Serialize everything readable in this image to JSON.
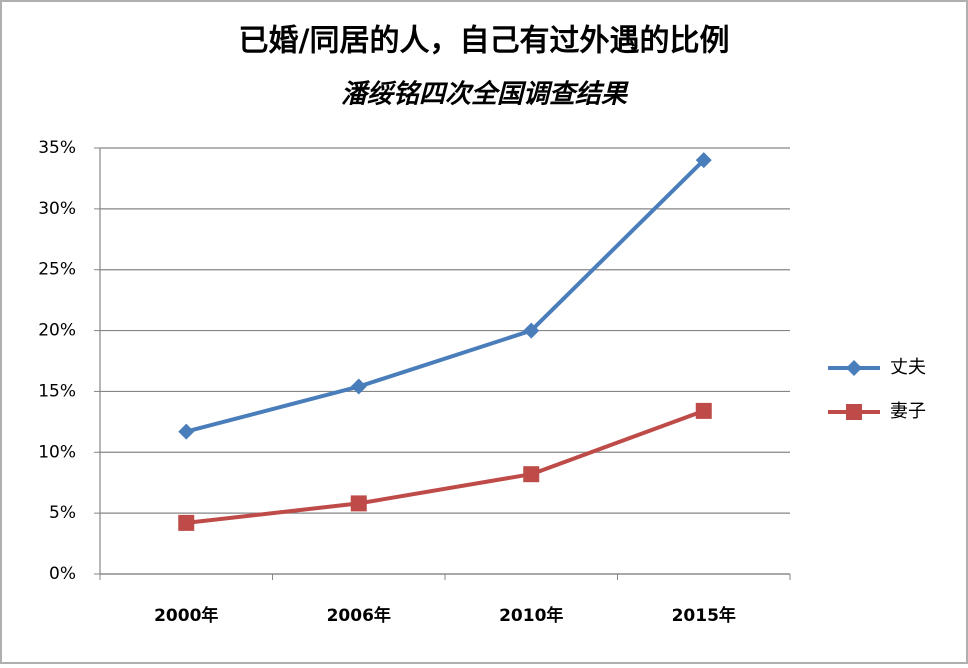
{
  "chart_data": {
    "type": "line",
    "title": "已婚/同居的人，自己有过外遇的比例",
    "subtitle": "潘绥铭四次全国调查结果",
    "categories": [
      "2000年",
      "2006年",
      "2010年",
      "2015年"
    ],
    "series": [
      {
        "name": "丈夫",
        "color": "#4a7ebb",
        "marker": "diamond",
        "values": [
          11.7,
          15.4,
          20,
          34
        ]
      },
      {
        "name": "妻子",
        "color": "#be4b48",
        "marker": "square",
        "values": [
          4.2,
          5.8,
          8.2,
          13.4
        ]
      }
    ],
    "ylim": [
      0,
      35
    ],
    "yticks": [
      {
        "value": 0,
        "label": "0%"
      },
      {
        "value": 5,
        "label": "5%"
      },
      {
        "value": 10,
        "label": "10%"
      },
      {
        "value": 15,
        "label": "15%"
      },
      {
        "value": 20,
        "label": "20%"
      },
      {
        "value": 25,
        "label": "25%"
      },
      {
        "value": 30,
        "label": "30%"
      },
      {
        "value": 35,
        "label": "35%"
      }
    ],
    "grid": true,
    "legend": "right"
  }
}
